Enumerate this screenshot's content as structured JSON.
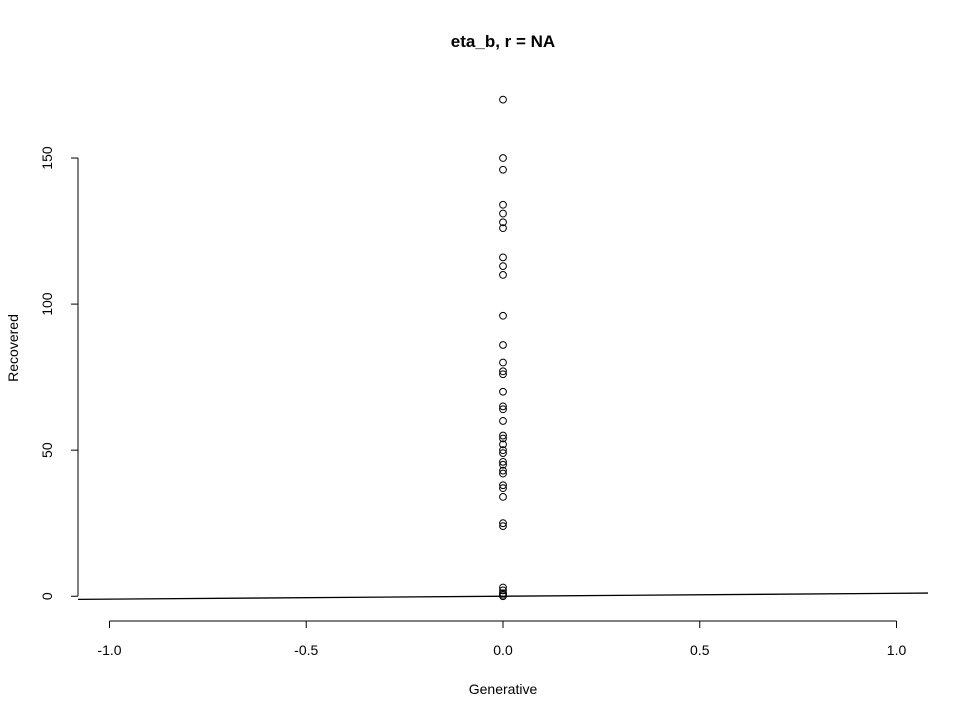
{
  "chart_data": {
    "type": "scatter",
    "title": "eta_b, r = NA",
    "xlabel": "Generative",
    "ylabel": "Recovered",
    "xlim": [
      -1.08,
      1.08
    ],
    "ylim": [
      -3,
      175
    ],
    "xticks": [
      -1.0,
      -0.5,
      0.0,
      0.5,
      1.0
    ],
    "xtick_labels": [
      "-1.0",
      "-0.5",
      "0.0",
      "0.5",
      "1.0"
    ],
    "yticks": [
      0,
      50,
      100,
      150
    ],
    "ytick_labels": [
      "0",
      "50",
      "100",
      "150"
    ],
    "grid": false,
    "legend": "none",
    "points": [
      {
        "x": 0,
        "y": 170
      },
      {
        "x": 0,
        "y": 150
      },
      {
        "x": 0,
        "y": 146
      },
      {
        "x": 0,
        "y": 134
      },
      {
        "x": 0,
        "y": 131
      },
      {
        "x": 0,
        "y": 128
      },
      {
        "x": 0,
        "y": 126
      },
      {
        "x": 0,
        "y": 116
      },
      {
        "x": 0,
        "y": 113
      },
      {
        "x": 0,
        "y": 110
      },
      {
        "x": 0,
        "y": 96
      },
      {
        "x": 0,
        "y": 86
      },
      {
        "x": 0,
        "y": 80
      },
      {
        "x": 0,
        "y": 77
      },
      {
        "x": 0,
        "y": 76
      },
      {
        "x": 0,
        "y": 70
      },
      {
        "x": 0,
        "y": 65
      },
      {
        "x": 0,
        "y": 64
      },
      {
        "x": 0,
        "y": 60
      },
      {
        "x": 0,
        "y": 55
      },
      {
        "x": 0,
        "y": 54
      },
      {
        "x": 0,
        "y": 52
      },
      {
        "x": 0,
        "y": 50
      },
      {
        "x": 0,
        "y": 49
      },
      {
        "x": 0,
        "y": 46
      },
      {
        "x": 0,
        "y": 45
      },
      {
        "x": 0,
        "y": 43
      },
      {
        "x": 0,
        "y": 42
      },
      {
        "x": 0,
        "y": 38
      },
      {
        "x": 0,
        "y": 37
      },
      {
        "x": 0,
        "y": 34
      },
      {
        "x": 0,
        "y": 25
      },
      {
        "x": 0,
        "y": 24
      },
      {
        "x": 0,
        "y": 3
      },
      {
        "x": 0,
        "y": 2
      },
      {
        "x": 0,
        "y": 1
      },
      {
        "x": 0,
        "y": 0.5
      },
      {
        "x": 0,
        "y": 0
      }
    ],
    "reference_line": {
      "intercept": 0,
      "slope": 1
    }
  }
}
